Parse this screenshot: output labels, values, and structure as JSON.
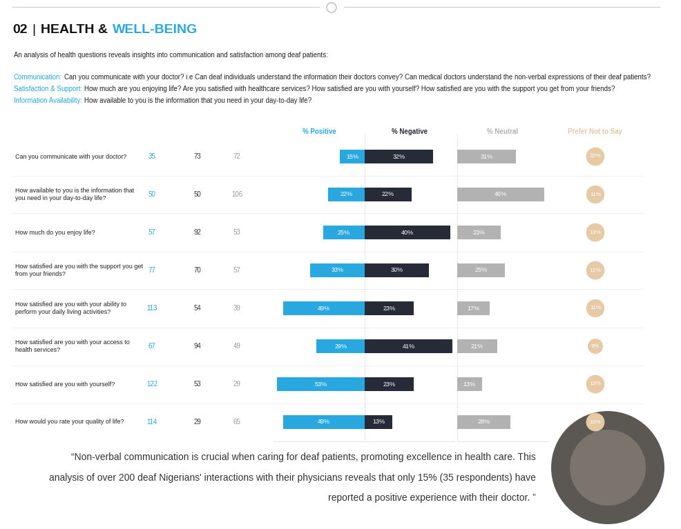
{
  "section": "02",
  "separator": "|",
  "title": "HEALTH &",
  "title_highlight": "WELL-BEING",
  "intro": "An analysis of health questions reveals insights into communication and satisfaction among deaf patients:",
  "definitions": [
    {
      "term": "Communication:",
      "text": "Can you communicate with your doctor? i.e Can deaf individuals understand the information their doctors convey? Can medical doctors understand the non-verbal expressions of their deaf patients?"
    },
    {
      "term": "Satisfaction & Support:",
      "text": "How much are you enjoying life? Are you satisfied with healthcare services? How satisfied are you with yourself? How satisfied are you with the support you get from your friends?"
    },
    {
      "term": "Information Availability:",
      "text": "How available to you is the information that you need in your day-to-day life?"
    }
  ],
  "chart_data": {
    "type": "bar",
    "orientation": "horizontal",
    "data_labels": true,
    "tick_labels": false,
    "grid": false,
    "categories": [
      "Can you communicate with your doctor?",
      "How available to you is the information that you need in your day-to-day life?",
      "How much do you enjoy life?",
      "How satisfied are you with the support you get from your friends?",
      "How satisfied are you with your ability to perform your daily living activities?",
      "How satisfied are you with your access to health services?",
      "How satisfied are you with yourself?",
      "How would you rate your quality of life?"
    ],
    "counts": [
      {
        "color": "#29a8e0",
        "values": [
          35,
          50,
          57,
          77,
          113,
          67,
          122,
          114
        ]
      },
      {
        "color": "#333333",
        "values": [
          73,
          50,
          92,
          70,
          54,
          94,
          53,
          29
        ]
      },
      {
        "color": "#9a9a9a",
        "values": [
          72,
          106,
          53,
          57,
          39,
          49,
          29,
          65
        ]
      }
    ],
    "series": [
      {
        "name": "% Positive",
        "type": "bar",
        "color": "#29a8e0",
        "values": [
          15,
          22,
          25,
          33,
          49,
          29,
          53,
          49
        ],
        "value_labels": [
          "15%",
          "22%",
          "25%",
          "33%",
          "49%",
          "29%",
          "53%",
          "49%"
        ],
        "xlim": [
          55,
          0
        ],
        "xticks": []
      },
      {
        "name": "% Negative",
        "type": "bar",
        "color": "#272b38",
        "values": [
          32,
          22,
          40,
          30,
          23,
          41,
          23,
          13
        ],
        "value_labels": [
          "32%",
          "22%",
          "40%",
          "30%",
          "23%",
          "41%",
          "23%",
          "13%"
        ],
        "xlim": [
          0,
          42
        ],
        "xticks": []
      },
      {
        "name": "% Neutral",
        "type": "bar",
        "color": "#b2b2b2",
        "values": [
          31,
          46,
          23,
          25,
          17,
          21,
          13,
          28
        ],
        "value_labels": [
          "31%",
          "46%",
          "23%",
          "25%",
          "17%",
          "21%",
          "13%",
          "28%"
        ],
        "xlim": [
          0,
          48
        ],
        "xticks": []
      },
      {
        "name": "Prefer Not to Say",
        "type": "circle_label",
        "color": "#e6c9a5",
        "values": [
          22,
          11,
          13,
          12,
          11,
          9,
          12,
          10
        ],
        "value_labels": [
          "22%",
          "11%",
          "13%",
          "12%",
          "11%",
          "9%",
          "12%",
          "10%"
        ]
      }
    ]
  },
  "quote": "“Non-verbal communication is crucial when caring for deaf patients, promoting excellence in health care. This analysis of over 200 deaf Nigerians' interactions with their physicians reveals that only 15% (35 respondents) have reported a positive experience with their doctor. ”"
}
